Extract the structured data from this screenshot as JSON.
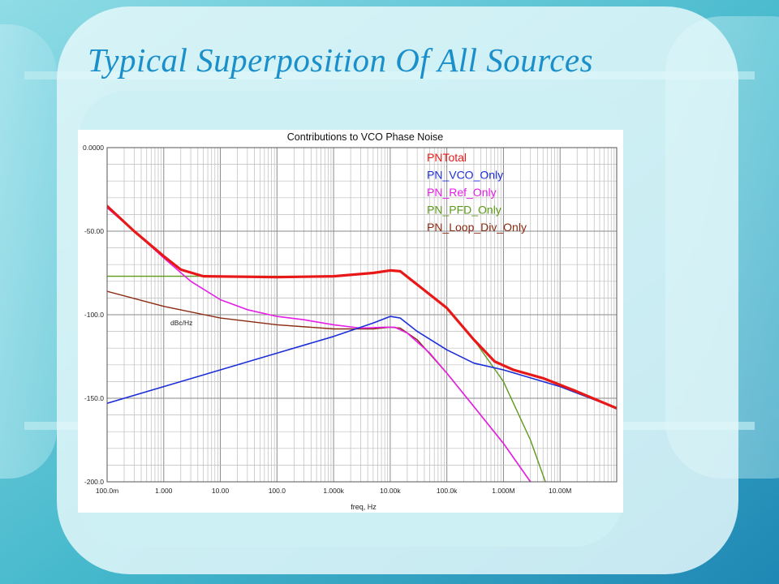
{
  "slide": {
    "title": "Typical Superposition Of All Sources",
    "colors": {
      "title": "#1a8fc9",
      "background": "#5fc3d2",
      "panel": "#ccf0f4"
    }
  },
  "chart_data": {
    "type": "line",
    "title": "Contributions to VCO Phase Noise",
    "xlabel": "freq, Hz",
    "ylabel": "dBc/Hz",
    "x_scale": "log",
    "xlim": [
      0.1,
      100000000
    ],
    "ylim": [
      -200,
      0
    ],
    "grid": true,
    "legend_position": "top-right",
    "x_ticks": [
      {
        "value": 0.1,
        "label": "100.0m"
      },
      {
        "value": 1,
        "label": "1.000"
      },
      {
        "value": 10,
        "label": "10.00"
      },
      {
        "value": 100,
        "label": "100.0"
      },
      {
        "value": 1000,
        "label": "1.000k"
      },
      {
        "value": 10000,
        "label": "10.00k"
      },
      {
        "value": 100000,
        "label": "100.0k"
      },
      {
        "value": 1000000,
        "label": "1.000M"
      },
      {
        "value": 10000000,
        "label": "10.00M"
      }
    ],
    "y_ticks": [
      {
        "value": 0,
        "label": "0.0000"
      },
      {
        "value": -50,
        "label": "-50.00"
      },
      {
        "value": -100,
        "label": "-100.0"
      },
      {
        "value": -150,
        "label": "-150.0"
      },
      {
        "value": -200,
        "label": "-200.0"
      }
    ],
    "series": [
      {
        "name": "PNTotal",
        "color": "#e81818",
        "width": 3.2,
        "points": [
          [
            0.1,
            -35
          ],
          [
            0.3,
            -50
          ],
          [
            1,
            -65
          ],
          [
            2,
            -73
          ],
          [
            5,
            -77
          ],
          [
            100,
            -77.5
          ],
          [
            1000,
            -77
          ],
          [
            5000,
            -75
          ],
          [
            10000,
            -73.5
          ],
          [
            15000,
            -74
          ],
          [
            30000,
            -82
          ],
          [
            100000,
            -96
          ],
          [
            300000,
            -115
          ],
          [
            700000,
            -128
          ],
          [
            1500000,
            -133
          ],
          [
            5000000,
            -138
          ],
          [
            20000000,
            -146
          ],
          [
            100000000,
            -156
          ]
        ]
      },
      {
        "name": "PN_VCO_Only",
        "color": "#1c2ed8",
        "width": 1.6,
        "points": [
          [
            0.1,
            -153
          ],
          [
            1,
            -143
          ],
          [
            10,
            -133
          ],
          [
            100,
            -123
          ],
          [
            1000,
            -113
          ],
          [
            5000,
            -105
          ],
          [
            10000,
            -101
          ],
          [
            15000,
            -102
          ],
          [
            30000,
            -110
          ],
          [
            100000,
            -121
          ],
          [
            300000,
            -129
          ],
          [
            1000000,
            -133
          ],
          [
            10000000,
            -143
          ],
          [
            100000000,
            -156
          ]
        ]
      },
      {
        "name": "PN_Ref_Only",
        "color": "#e61ee6",
        "width": 1.6,
        "points": [
          [
            0.1,
            -36
          ],
          [
            0.3,
            -50
          ],
          [
            1,
            -66
          ],
          [
            3,
            -80
          ],
          [
            10,
            -91
          ],
          [
            30,
            -97
          ],
          [
            100,
            -101
          ],
          [
            300,
            -103
          ],
          [
            1000,
            -106
          ],
          [
            3000,
            -108
          ],
          [
            8000,
            -107.5
          ],
          [
            12000,
            -107.5
          ],
          [
            20000,
            -111
          ],
          [
            50000,
            -123
          ],
          [
            100000,
            -135
          ],
          [
            300000,
            -155
          ],
          [
            1000000,
            -177
          ],
          [
            3000000,
            -200
          ]
        ]
      },
      {
        "name": "PN_PFD_Only",
        "color": "#5c9a1a",
        "width": 1.4,
        "points": [
          [
            0.1,
            -77
          ],
          [
            100,
            -77
          ],
          [
            1000,
            -77
          ],
          [
            5000,
            -75
          ],
          [
            10000,
            -73.5
          ],
          [
            15000,
            -74
          ],
          [
            30000,
            -82
          ],
          [
            100000,
            -96
          ],
          [
            300000,
            -115
          ],
          [
            1000000,
            -140
          ],
          [
            3000000,
            -175
          ],
          [
            5500000,
            -200
          ]
        ]
      },
      {
        "name": "PN_Loop_Div_Only",
        "color": "#8b2a12",
        "width": 1.4,
        "points": [
          [
            0.1,
            -86
          ],
          [
            1,
            -95
          ],
          [
            10,
            -102
          ],
          [
            100,
            -106
          ],
          [
            1000,
            -108.5
          ],
          [
            5000,
            -108.5
          ],
          [
            10000,
            -107.5
          ],
          [
            15000,
            -108
          ],
          [
            30000,
            -115
          ],
          [
            100000,
            -135
          ],
          [
            300000,
            -155
          ],
          [
            1000000,
            -177
          ],
          [
            3000000,
            -200
          ]
        ]
      }
    ]
  }
}
